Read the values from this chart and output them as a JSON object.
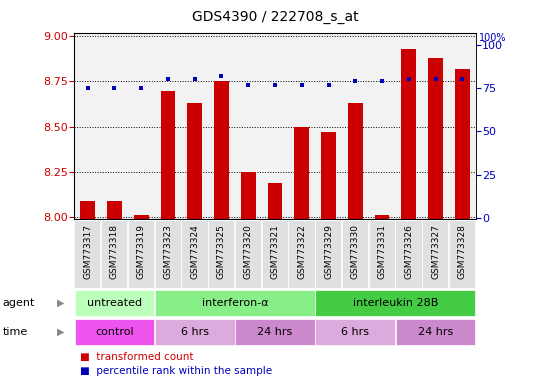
{
  "title": "GDS4390 / 222708_s_at",
  "samples": [
    "GSM773317",
    "GSM773318",
    "GSM773319",
    "GSM773323",
    "GSM773324",
    "GSM773325",
    "GSM773320",
    "GSM773321",
    "GSM773322",
    "GSM773329",
    "GSM773330",
    "GSM773331",
    "GSM773326",
    "GSM773327",
    "GSM773328"
  ],
  "bar_values": [
    8.09,
    8.09,
    8.01,
    8.7,
    8.63,
    8.75,
    8.25,
    8.19,
    8.5,
    8.47,
    8.63,
    8.01,
    8.93,
    8.88,
    8.82
  ],
  "dot_values": [
    75,
    75,
    75,
    80,
    80,
    82,
    77,
    77,
    77,
    77,
    79,
    79,
    80,
    80,
    80
  ],
  "ylim_left": [
    7.99,
    9.02
  ],
  "ylim_right": [
    -0.5,
    107
  ],
  "yticks_left": [
    8.0,
    8.25,
    8.5,
    8.75,
    9.0
  ],
  "yticks_right": [
    0,
    25,
    50,
    75,
    100
  ],
  "bar_color": "#cc0000",
  "dot_color": "#0000bb",
  "agent_groups": [
    {
      "label": "untreated",
      "start": 0,
      "end": 3,
      "color": "#bbffbb"
    },
    {
      "label": "interferon-α",
      "start": 3,
      "end": 9,
      "color": "#88ee88"
    },
    {
      "label": "interleukin 28B",
      "start": 9,
      "end": 15,
      "color": "#44cc44"
    }
  ],
  "time_groups": [
    {
      "label": "control",
      "start": 0,
      "end": 3,
      "color": "#ee55ee"
    },
    {
      "label": "6 hrs",
      "start": 3,
      "end": 6,
      "color": "#ddaadd"
    },
    {
      "label": "24 hrs",
      "start": 6,
      "end": 9,
      "color": "#cc88cc"
    },
    {
      "label": "6 hrs",
      "start": 9,
      "end": 12,
      "color": "#ddaadd"
    },
    {
      "label": "24 hrs",
      "start": 12,
      "end": 15,
      "color": "#cc88cc"
    }
  ],
  "legend_bar_label": "transformed count",
  "legend_dot_label": "percentile rank within the sample",
  "agent_label": "agent",
  "time_label": "time",
  "plot_bg": "#f2f2f2",
  "sample_bg": "#e0e0e0"
}
